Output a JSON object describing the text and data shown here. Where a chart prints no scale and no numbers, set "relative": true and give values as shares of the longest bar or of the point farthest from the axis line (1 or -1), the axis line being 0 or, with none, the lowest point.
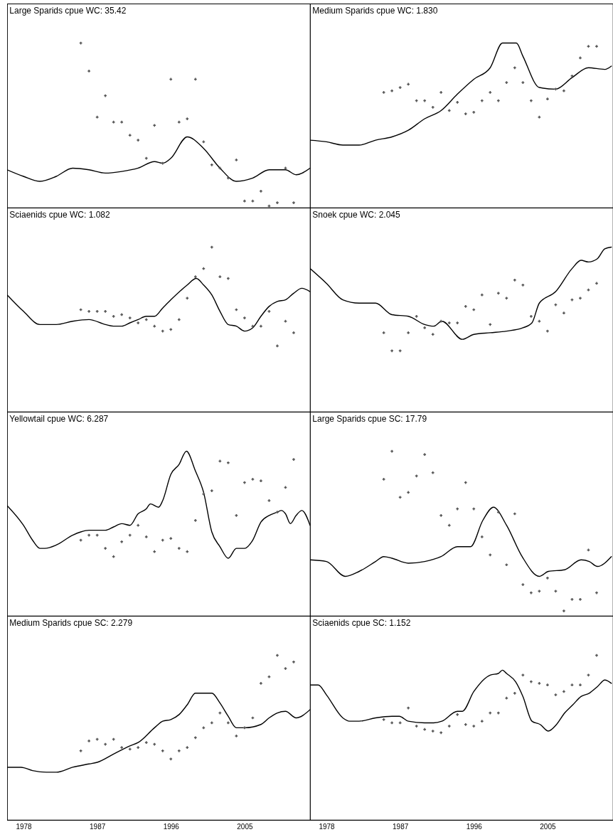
{
  "chart_data": [
    {
      "type": "line",
      "title": "Large Sparids cpue WC: 35.42",
      "relative": true,
      "xlim": [
        1976,
        2013
      ],
      "xticks": [
        1978,
        1987,
        1996,
        2005
      ],
      "tick_labels": false,
      "series": [
        {
          "type": "line",
          "color": "#000000",
          "x": [
            1976,
            1978,
            1980,
            1982,
            1984,
            1986,
            1988,
            1990,
            1992,
            1994,
            1995,
            1996,
            1998,
            2000,
            2002,
            2004,
            2006,
            2008,
            2010,
            2011.3,
            2013
          ],
          "values": [
            0.23,
            0.19,
            0.16,
            0.19,
            0.24,
            0.23,
            0.21,
            0.22,
            0.24,
            0.28,
            0.27,
            0.3,
            0.43,
            0.36,
            0.24,
            0.16,
            0.18,
            0.23,
            0.23,
            0.2,
            0.24
          ]
        },
        {
          "type": "scatter",
          "color": "#555555",
          "marker": "cross",
          "x": [
            1985,
            1986,
            1987,
            1988,
            1989,
            1990,
            1991,
            1992,
            1993,
            1994,
            1995,
            1996,
            1997,
            1998,
            1999,
            2000,
            2001,
            2002,
            2003,
            2004,
            2005,
            2006,
            2007,
            2008,
            2009,
            2010,
            2011
          ],
          "values": [
            1,
            0.83,
            0.55,
            0.68,
            0.52,
            0.52,
            0.44,
            0.41,
            0.3,
            0.5,
            0.27,
            0.78,
            0.52,
            0.54,
            0.78,
            0.4,
            0.26,
            0.24,
            0.18,
            0.29,
            0.04,
            0.04,
            0.1,
            0.01,
            0.03,
            0.24,
            0.03
          ]
        }
      ]
    },
    {
      "type": "line",
      "title": "Medium Sparids cpue WC: 1.830",
      "relative": true,
      "xlim": [
        1976,
        2013
      ],
      "xticks": [
        1978,
        1987,
        1996,
        2005
      ],
      "tick_labels": false,
      "series": [
        {
          "type": "line",
          "color": "#000000",
          "x": [
            1976,
            1978,
            1980,
            1982,
            1984,
            1986,
            1988,
            1990,
            1992,
            1994,
            1996,
            1998,
            1999.5,
            2001.2,
            2002,
            2004,
            2006,
            2008,
            2010,
            2012,
            2012.8
          ],
          "values": [
            0.41,
            0.4,
            0.38,
            0.38,
            0.41,
            0.43,
            0.47,
            0.54,
            0.59,
            0.69,
            0.78,
            0.85,
            1,
            1,
            0.92,
            0.73,
            0.72,
            0.79,
            0.85,
            0.84,
            0.86
          ]
        },
        {
          "type": "scatter",
          "color": "#555555",
          "marker": "cross",
          "x": [
            1985,
            1986,
            1987,
            1988,
            1989,
            1990,
            1991,
            1992,
            1993,
            1994,
            1995,
            1996,
            1997,
            1998,
            1999,
            2000,
            2001,
            2002,
            2003,
            2004,
            2005,
            2006,
            2007,
            2008,
            2009,
            2010,
            2011
          ],
          "values": [
            0.7,
            0.71,
            0.73,
            0.75,
            0.65,
            0.65,
            0.61,
            0.7,
            0.59,
            0.64,
            0.57,
            0.58,
            0.65,
            0.7,
            0.65,
            0.76,
            0.85,
            0.76,
            0.65,
            0.55,
            0.66,
            0.72,
            0.71,
            0.8,
            0.91,
            0.98,
            0.98
          ]
        }
      ]
    },
    {
      "type": "line",
      "title": "Sciaenids cpue WC: 1.082",
      "relative": true,
      "xlim": [
        1976,
        2013
      ],
      "xticks": [
        1978,
        1987,
        1996,
        2005
      ],
      "tick_labels": false,
      "series": [
        {
          "type": "line",
          "color": "#000000",
          "x": [
            1976,
            1978,
            1980,
            1982,
            1984,
            1986,
            1988,
            1989,
            1990,
            1991,
            1992,
            1993,
            1994,
            1995,
            1996,
            1998,
            1999.1,
            2000,
            2001,
            2002,
            2003,
            2004,
            2005,
            2006,
            2007,
            2008,
            2009,
            2010,
            2011,
            2012,
            2013
          ],
          "values": [
            0.71,
            0.61,
            0.53,
            0.53,
            0.55,
            0.56,
            0.53,
            0.52,
            0.52,
            0.54,
            0.56,
            0.58,
            0.58,
            0.63,
            0.68,
            0.77,
            0.81,
            0.77,
            0.71,
            0.61,
            0.53,
            0.52,
            0.49,
            0.51,
            0.58,
            0.64,
            0.67,
            0.68,
            0.72,
            0.75,
            0.73
          ]
        },
        {
          "type": "scatter",
          "color": "#555555",
          "marker": "cross",
          "x": [
            1985,
            1986,
            1987,
            1988,
            1989,
            1990,
            1991,
            1992,
            1993,
            1994,
            1995,
            1996,
            1997,
            1998,
            1999,
            2000,
            2001,
            2002,
            2003,
            2004,
            2005,
            2006,
            2007,
            2008,
            2009,
            2010,
            2011
          ],
          "values": [
            0.62,
            0.61,
            0.61,
            0.61,
            0.58,
            0.59,
            0.57,
            0.54,
            0.56,
            0.52,
            0.49,
            0.5,
            0.56,
            0.69,
            0.82,
            0.87,
            1,
            0.82,
            0.81,
            0.62,
            0.57,
            0.52,
            0.52,
            0.61,
            0.4,
            0.55,
            0.48
          ]
        }
      ]
    },
    {
      "type": "line",
      "title": "Snoek cpue WC: 2.045",
      "relative": true,
      "xlim": [
        1976,
        2013
      ],
      "xticks": [
        1978,
        1987,
        1996,
        2005
      ],
      "tick_labels": false,
      "series": [
        {
          "type": "line",
          "color": "#000000",
          "x": [
            1976,
            1978,
            1980,
            1982,
            1984,
            1986,
            1988,
            1990,
            1991.1,
            1992.1,
            1994.6,
            1996,
            1998,
            2000,
            2002,
            2003.1,
            2004,
            2006,
            2008,
            2009.1,
            2010,
            2011.1,
            2012,
            2012.8
          ],
          "values": [
            0.87,
            0.78,
            0.68,
            0.66,
            0.66,
            0.59,
            0.58,
            0.53,
            0.52,
            0.55,
            0.44,
            0.47,
            0.48,
            0.49,
            0.51,
            0.54,
            0.66,
            0.73,
            0.87,
            0.92,
            0.91,
            0.93,
            0.99,
            1
          ]
        },
        {
          "type": "scatter",
          "color": "#555555",
          "marker": "cross",
          "x": [
            1985,
            1986,
            1987,
            1988,
            1989,
            1990,
            1991,
            1992,
            1993,
            1994,
            1995,
            1996,
            1997,
            1998,
            1999,
            2000,
            2001,
            2002,
            2003,
            2004,
            2005,
            2006,
            2007,
            2008,
            2009,
            2010,
            2011
          ],
          "values": [
            0.48,
            0.37,
            0.37,
            0.48,
            0.58,
            0.51,
            0.47,
            0.55,
            0.54,
            0.54,
            0.64,
            0.62,
            0.71,
            0.53,
            0.72,
            0.69,
            0.8,
            0.77,
            0.58,
            0.55,
            0.49,
            0.65,
            0.6,
            0.68,
            0.69,
            0.74,
            0.78
          ]
        }
      ]
    },
    {
      "type": "line",
      "title": "Yellowtail cpue WC: 6.287",
      "relative": true,
      "xlim": [
        1976,
        2013
      ],
      "xticks": [
        1978,
        1987,
        1996,
        2005
      ],
      "tick_labels": false,
      "series": [
        {
          "type": "line",
          "color": "#000000",
          "x": [
            1976,
            1978,
            1979.1,
            1980,
            1980.6,
            1982,
            1984,
            1985,
            1986,
            1987,
            1988,
            1989,
            1990,
            1991,
            1992,
            1993,
            1993.5,
            1994.5,
            1995,
            1996,
            1997,
            1997.9,
            1999,
            2000,
            2001,
            2002,
            2003,
            2004,
            2005,
            2006,
            2007,
            2008,
            2009,
            2009.5,
            2010,
            2010.6,
            2011.3,
            2012,
            2013
          ],
          "values": [
            0.67,
            0.55,
            0.46,
            0.41,
            0.41,
            0.43,
            0.49,
            0.51,
            0.52,
            0.52,
            0.52,
            0.54,
            0.56,
            0.55,
            0.62,
            0.65,
            0.68,
            0.66,
            0.7,
            0.86,
            0.92,
            1,
            0.88,
            0.75,
            0.51,
            0.42,
            0.35,
            0.41,
            0.41,
            0.46,
            0.57,
            0.61,
            0.63,
            0.64,
            0.62,
            0.56,
            0.61,
            0.64,
            0.55
          ]
        },
        {
          "type": "scatter",
          "color": "#555555",
          "marker": "cross",
          "x": [
            1985,
            1986,
            1987,
            1988,
            1989,
            1990,
            1991,
            1992,
            1993,
            1994,
            1995,
            1996,
            1997,
            1998,
            1999,
            2000,
            2001,
            2002,
            2003,
            2004,
            2005,
            2006,
            2007,
            2008,
            2009,
            2010,
            2011
          ],
          "values": [
            0.46,
            0.49,
            0.49,
            0.41,
            0.36,
            0.45,
            0.49,
            0.55,
            0.48,
            0.39,
            0.46,
            0.47,
            0.41,
            0.39,
            0.58,
            0.74,
            0.76,
            0.94,
            0.93,
            0.61,
            0.81,
            0.83,
            0.82,
            0.7,
            0.63,
            0.78,
            0.95
          ]
        }
      ]
    },
    {
      "type": "line",
      "title": "Large Sparids cpue SC: 17.79",
      "relative": true,
      "xlim": [
        1976,
        2013
      ],
      "xticks": [
        1978,
        1987,
        1996,
        2005
      ],
      "tick_labels": false,
      "series": [
        {
          "type": "line",
          "color": "#000000",
          "x": [
            1976,
            1978,
            1980.3,
            1982,
            1984,
            1985,
            1986,
            1988,
            1990,
            1992,
            1994,
            1995.6,
            1997.1,
            1998.4,
            2000,
            2001.9,
            2004,
            2005.1,
            2007.1,
            2009.1,
            2010.1,
            2011.1,
            2012.8
          ],
          "values": [
            0.34,
            0.33,
            0.24,
            0.27,
            0.33,
            0.36,
            0.35,
            0.32,
            0.33,
            0.36,
            0.42,
            0.42,
            0.58,
            0.66,
            0.55,
            0.36,
            0.24,
            0.27,
            0.28,
            0.34,
            0.33,
            0.3,
            0.36
          ]
        },
        {
          "type": "scatter",
          "color": "#555555",
          "marker": "cross",
          "x": [
            1985,
            1986,
            1987,
            1988,
            1989,
            1990,
            1991,
            1992,
            1993,
            1994,
            1995,
            1996,
            1997,
            1998,
            1999,
            2000,
            2001,
            2002,
            2003,
            2004,
            2005,
            2006,
            2007,
            2008,
            2009,
            2010,
            2011
          ],
          "values": [
            0.83,
            1,
            0.72,
            0.75,
            0.85,
            0.98,
            0.87,
            0.61,
            0.55,
            0.65,
            0.81,
            0.65,
            0.48,
            0.37,
            0.63,
            0.31,
            0.62,
            0.19,
            0.14,
            0.15,
            0.23,
            0.15,
            0.03,
            0.1,
            0.1,
            0.4,
            0.14
          ]
        }
      ]
    },
    {
      "type": "line",
      "title": "Medium Sparids cpue SC: 2.279",
      "relative": true,
      "xlim": [
        1976,
        2013
      ],
      "xticks": [
        1978,
        1987,
        1996,
        2005
      ],
      "tick_labels": "x",
      "series": [
        {
          "type": "line",
          "color": "#000000",
          "x": [
            1976,
            1977.7,
            1979.1,
            1980.8,
            1982,
            1984,
            1986,
            1987,
            1989,
            1991,
            1992,
            1994,
            1995,
            1996,
            1997,
            1998,
            1999,
            2000,
            2001,
            2002,
            2003,
            2004,
            2005,
            2007,
            2008,
            2009,
            2010,
            2011.3,
            2013
          ],
          "values": [
            0.32,
            0.32,
            0.3,
            0.29,
            0.29,
            0.32,
            0.34,
            0.35,
            0.4,
            0.45,
            0.47,
            0.56,
            0.6,
            0.61,
            0.64,
            0.7,
            0.77,
            0.77,
            0.77,
            0.71,
            0.63,
            0.56,
            0.56,
            0.58,
            0.62,
            0.65,
            0.66,
            0.62,
            0.67
          ]
        },
        {
          "type": "scatter",
          "color": "#555555",
          "marker": "cross",
          "x": [
            1985,
            1986,
            1987,
            1988,
            1989,
            1990,
            1991,
            1992,
            1993,
            1994,
            1995,
            1996,
            1997,
            1998,
            1999,
            2000,
            2001,
            2002,
            2003,
            2004,
            2005,
            2006,
            2007,
            2008,
            2009,
            2010,
            2011
          ],
          "values": [
            0.42,
            0.48,
            0.49,
            0.46,
            0.49,
            0.44,
            0.43,
            0.44,
            0.47,
            0.46,
            0.42,
            0.37,
            0.42,
            0.44,
            0.5,
            0.56,
            0.59,
            0.65,
            0.59,
            0.51,
            0.56,
            0.62,
            0.83,
            0.87,
            1,
            0.92,
            0.96
          ]
        }
      ]
    },
    {
      "type": "line",
      "title": "Sciaenids cpue SC: 1.152",
      "relative": true,
      "xlim": [
        1976,
        2013
      ],
      "xticks": [
        1978,
        1987,
        1996,
        2005
      ],
      "tick_labels": "x",
      "series": [
        {
          "type": "line",
          "color": "#000000",
          "x": [
            1976,
            1977,
            1978,
            1980,
            1980.8,
            1982,
            1984,
            1986,
            1986.9,
            1988,
            1990,
            1991.1,
            1992.1,
            1994,
            1994.6,
            1996,
            1998,
            1999,
            1999.5,
            2000,
            2001.1,
            2002,
            2003.1,
            2004.1,
            2005.1,
            2006.1,
            2007.1,
            2008.1,
            2009.1,
            2010.1,
            2011.1,
            2012,
            2012.8
          ],
          "values": [
            0.82,
            0.82,
            0.76,
            0.62,
            0.6,
            0.6,
            0.62,
            0.63,
            0.63,
            0.6,
            0.59,
            0.59,
            0.6,
            0.66,
            0.66,
            0.78,
            0.88,
            0.89,
            0.91,
            0.89,
            0.84,
            0.75,
            0.6,
            0.58,
            0.54,
            0.58,
            0.65,
            0.7,
            0.75,
            0.77,
            0.81,
            0.85,
            0.83
          ]
        },
        {
          "type": "scatter",
          "color": "#555555",
          "marker": "cross",
          "x": [
            1985,
            1986,
            1987,
            1988,
            1989,
            1990,
            1991,
            1992,
            1993,
            1994,
            1995,
            1996,
            1997,
            1998,
            1999,
            2000,
            2001,
            2002,
            2003,
            2004,
            2005,
            2006,
            2007,
            2008,
            2009,
            2010,
            2011
          ],
          "values": [
            0.61,
            0.59,
            0.59,
            0.68,
            0.57,
            0.55,
            0.54,
            0.53,
            0.57,
            0.64,
            0.58,
            0.57,
            0.6,
            0.65,
            0.65,
            0.74,
            0.77,
            0.88,
            0.84,
            0.83,
            0.82,
            0.76,
            0.78,
            0.82,
            0.82,
            0.88,
            1
          ]
        }
      ]
    }
  ]
}
